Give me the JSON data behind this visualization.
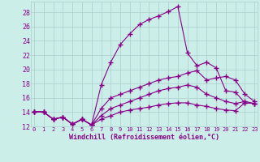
{
  "xlabel": "Windchill (Refroidissement éolien,°C)",
  "bg_color": "#cceee8",
  "line_color": "#880088",
  "xmin": 0,
  "xmax": 23,
  "ymin": 12,
  "ymax": 29,
  "yticks": [
    12,
    14,
    16,
    18,
    20,
    22,
    24,
    26,
    28
  ],
  "xticks": [
    0,
    1,
    2,
    3,
    4,
    5,
    6,
    7,
    8,
    9,
    10,
    11,
    12,
    13,
    14,
    15,
    16,
    17,
    18,
    19,
    20,
    21,
    22,
    23
  ],
  "lines": [
    {
      "x": [
        0,
        1,
        2,
        3,
        4,
        5,
        6,
        7,
        8,
        9,
        10,
        11,
        12,
        13,
        14,
        15,
        16,
        17,
        18,
        19,
        20,
        21,
        22,
        23
      ],
      "y": [
        14.1,
        14.0,
        13.0,
        13.3,
        12.3,
        13.0,
        12.2,
        17.8,
        21.0,
        23.5,
        25.0,
        26.3,
        27.0,
        27.5,
        28.1,
        28.8,
        22.3,
        20.5,
        21.0,
        20.2,
        17.0,
        16.8,
        15.3,
        15.2
      ]
    },
    {
      "x": [
        0,
        1,
        2,
        3,
        4,
        5,
        6,
        7,
        8,
        9,
        10,
        11,
        12,
        13,
        14,
        15,
        16,
        17,
        18,
        19,
        20,
        21,
        22,
        23
      ],
      "y": [
        14.1,
        14.0,
        13.0,
        13.3,
        12.3,
        13.0,
        12.2,
        14.5,
        16.0,
        16.5,
        17.0,
        17.5,
        18.0,
        18.5,
        18.8,
        19.0,
        19.5,
        19.8,
        18.5,
        18.8,
        19.0,
        18.5,
        16.5,
        15.5
      ]
    },
    {
      "x": [
        0,
        1,
        2,
        3,
        4,
        5,
        6,
        7,
        8,
        9,
        10,
        11,
        12,
        13,
        14,
        15,
        16,
        17,
        18,
        19,
        20,
        21,
        22,
        23
      ],
      "y": [
        14.1,
        14.0,
        13.0,
        13.3,
        12.3,
        13.0,
        12.2,
        13.5,
        14.5,
        15.0,
        15.5,
        16.0,
        16.5,
        17.0,
        17.3,
        17.5,
        17.8,
        17.5,
        16.5,
        16.0,
        15.5,
        15.2,
        15.5,
        15.2
      ]
    },
    {
      "x": [
        0,
        1,
        2,
        3,
        4,
        5,
        6,
        7,
        8,
        9,
        10,
        11,
        12,
        13,
        14,
        15,
        16,
        17,
        18,
        19,
        20,
        21,
        22,
        23
      ],
      "y": [
        14.1,
        14.0,
        13.0,
        13.3,
        12.3,
        13.0,
        12.2,
        13.0,
        13.5,
        14.0,
        14.3,
        14.5,
        14.7,
        15.0,
        15.2,
        15.3,
        15.3,
        15.0,
        14.8,
        14.5,
        14.3,
        14.2,
        15.3,
        15.2
      ]
    }
  ]
}
